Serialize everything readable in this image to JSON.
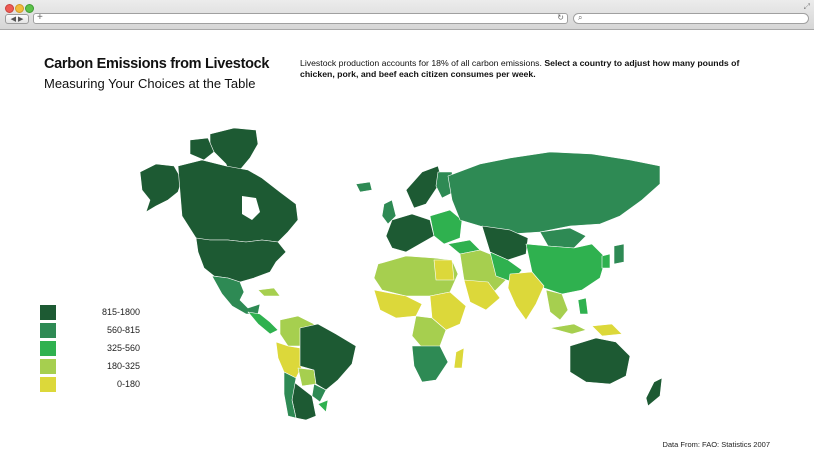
{
  "browser": {
    "new_tab_glyph": "+",
    "reload_glyph": "↻",
    "search_glyph": "⌕",
    "nav_glyph": "◀ ▶",
    "resize_glyph": "⤢"
  },
  "header": {
    "title": "Carbon Emissions from Livestock",
    "subtitle": "Measuring Your Choices at the Table"
  },
  "intro": {
    "text": "Livestock production accounts for 18% of all carbon emissions. ",
    "emphasis": "Select a country to adjust how many pounds of chicken, pork, and beef each citizen consumes per week."
  },
  "legend": {
    "items": [
      {
        "label": "815-1800",
        "color": "#1d5a33"
      },
      {
        "label": "560-815",
        "color": "#2e8a54"
      },
      {
        "label": "325-560",
        "color": "#2fb14f"
      },
      {
        "label": "180-325",
        "color": "#a6cf4f"
      },
      {
        "label": "0-180",
        "color": "#dcd83a"
      }
    ]
  },
  "credit": "Data From: FAO: Statistics 2007"
}
